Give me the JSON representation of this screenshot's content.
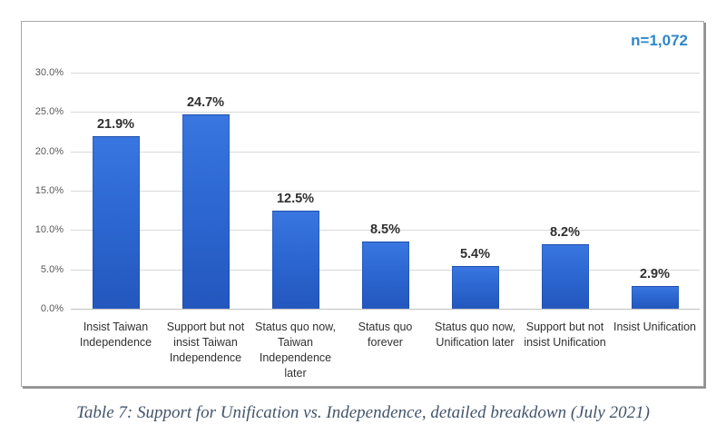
{
  "chart_data": {
    "type": "bar",
    "annotation": "n=1,072",
    "categories": [
      "Insist Taiwan Independence",
      "Support but not insist Taiwan Independence",
      "Status quo now, Taiwan Independence later",
      "Status quo forever",
      "Status quo now, Unification later",
      "Support but not insist Unification",
      "Insist Unification"
    ],
    "values": [
      21.9,
      24.7,
      12.5,
      8.5,
      5.4,
      8.2,
      2.9
    ],
    "data_labels": [
      "21.9%",
      "24.7%",
      "12.5%",
      "8.5%",
      "5.4%",
      "8.2%",
      "2.9%"
    ],
    "y_ticks": [
      {
        "label": "30.0%",
        "value": 30
      },
      {
        "label": "25.0%",
        "value": 25
      },
      {
        "label": "20.0%",
        "value": 20
      },
      {
        "label": "15.0%",
        "value": 15
      },
      {
        "label": "10.0%",
        "value": 10
      },
      {
        "label": "5.0%",
        "value": 5
      },
      {
        "label": "0.0%",
        "value": 0
      }
    ],
    "ylim": [
      0,
      30
    ],
    "grid": true,
    "legend": "none",
    "title": "",
    "xlabel": "",
    "ylabel": ""
  },
  "caption": "Table 7: Support for Unification vs. Independence, detailed breakdown (July 2021)",
  "colors": {
    "bar_blue": "#2d68d2",
    "bar_blue_light": "#3a76e0",
    "bar_blue_dark": "#2357be",
    "accent_blue": "#2e86c8",
    "caption_text": "#44546a",
    "gridline": "#d9d9d9"
  }
}
